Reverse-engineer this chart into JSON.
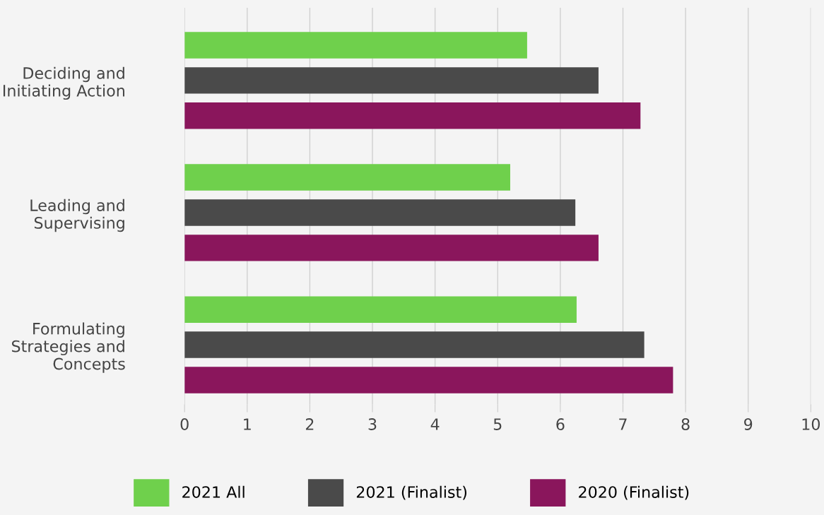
{
  "chart_data": {
    "type": "bar",
    "orientation": "horizontal",
    "categories": [
      "Deciding and\nInitiating Action",
      "Leading and\nSupervising",
      "Formulating\nStrategies and\nConcepts"
    ],
    "series": [
      {
        "name": "2021 All",
        "color": "#6fd04c",
        "values": [
          5.47,
          5.2,
          6.26
        ]
      },
      {
        "name": "2021 (Finalist)",
        "color": "#4a4a4a",
        "values": [
          6.61,
          6.24,
          7.34
        ]
      },
      {
        "name": "2020 (Finalist)",
        "color": "#8a165c",
        "values": [
          7.28,
          6.61,
          7.8
        ]
      }
    ],
    "xlim": [
      0,
      10
    ],
    "xticks": [
      0,
      1,
      2,
      3,
      4,
      5,
      6,
      7,
      8,
      9,
      10
    ],
    "grid": "x",
    "legend": "bottom"
  }
}
